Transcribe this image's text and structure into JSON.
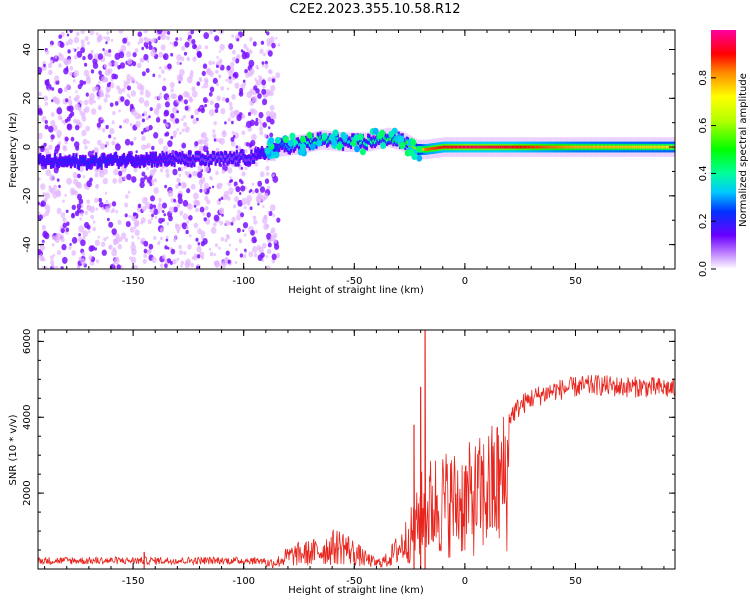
{
  "figure": {
    "title": "C2E2.2023.355.10.58.R12"
  },
  "chart_data": [
    {
      "type": "heatmap",
      "xlabel": "Height of straight line (km)",
      "ylabel": "Frequency (Hz)",
      "xlim": [
        -193,
        95
      ],
      "ylim": [
        -50,
        48
      ],
      "x_ticks": [
        -150,
        -100,
        -50,
        0,
        50
      ],
      "y_ticks": [
        -40,
        -20,
        0,
        20,
        40
      ],
      "colorbar": {
        "label": "Normalized spectral amplitude",
        "range": [
          0,
          1
        ],
        "ticks": [
          0.0,
          0.2,
          0.4,
          0.6,
          0.8
        ]
      },
      "ridge": {
        "x": [
          -190,
          -170,
          -150,
          -130,
          -110,
          -95,
          -85,
          -75,
          -65,
          -55,
          -45,
          -35,
          -28,
          -22,
          -18,
          -10,
          0,
          20,
          50,
          95
        ],
        "freq": [
          -6,
          -6,
          -5,
          -5,
          -5,
          -4,
          0,
          1,
          3,
          2,
          2,
          4,
          2,
          -1,
          -1,
          0,
          0,
          0,
          0,
          0
        ],
        "amplitude": [
          0.15,
          0.2,
          0.15,
          0.12,
          0.1,
          0.12,
          0.25,
          0.35,
          0.45,
          0.35,
          0.4,
          0.45,
          0.5,
          0.6,
          0.85,
          0.9,
          0.95,
          0.92,
          0.8,
          0.75
        ]
      },
      "noise_region": {
        "x_range": [
          -193,
          -90
        ],
        "amplitude": 0.1
      },
      "colors": {
        "low": "#e6b8ff",
        "mid": "#6a00ff",
        "band": "#23b6f0"
      }
    },
    {
      "type": "line",
      "xlabel": "Height of straight line (km)",
      "ylabel": "SNR (10 * v/v)",
      "xlim": [
        -193,
        95
      ],
      "ylim": [
        0,
        6300
      ],
      "x_ticks": [
        -150,
        -100,
        -50,
        0,
        50
      ],
      "y_ticks": [
        2000,
        4000,
        6000
      ],
      "series": [
        {
          "color": "#e8241c",
          "envelope_x": [
            -193,
            -120,
            -95,
            -85,
            -80,
            -75,
            -70,
            -65,
            -60,
            -55,
            -50,
            -45,
            -40,
            -35,
            -30,
            -25,
            -22,
            -20,
            -18,
            -15,
            -10,
            -5,
            0,
            5,
            10,
            15,
            20,
            25,
            30,
            40,
            50,
            60,
            70,
            80,
            95
          ],
          "envelope_y": [
            200,
            200,
            200,
            300,
            550,
            650,
            700,
            800,
            950,
            1000,
            700,
            450,
            250,
            400,
            900,
            1400,
            1800,
            2400,
            2300,
            2800,
            2900,
            2900,
            3000,
            3100,
            3400,
            3700,
            4000,
            4300,
            4500,
            4700,
            4800,
            4850,
            4800,
            4800,
            4750
          ],
          "spikes": [
            {
              "x": -145,
              "y": 450
            },
            {
              "x": -18,
              "y": 6300
            },
            {
              "x": -23,
              "y": 3800
            },
            {
              "x": -20,
              "y": 4800
            }
          ]
        }
      ]
    }
  ]
}
